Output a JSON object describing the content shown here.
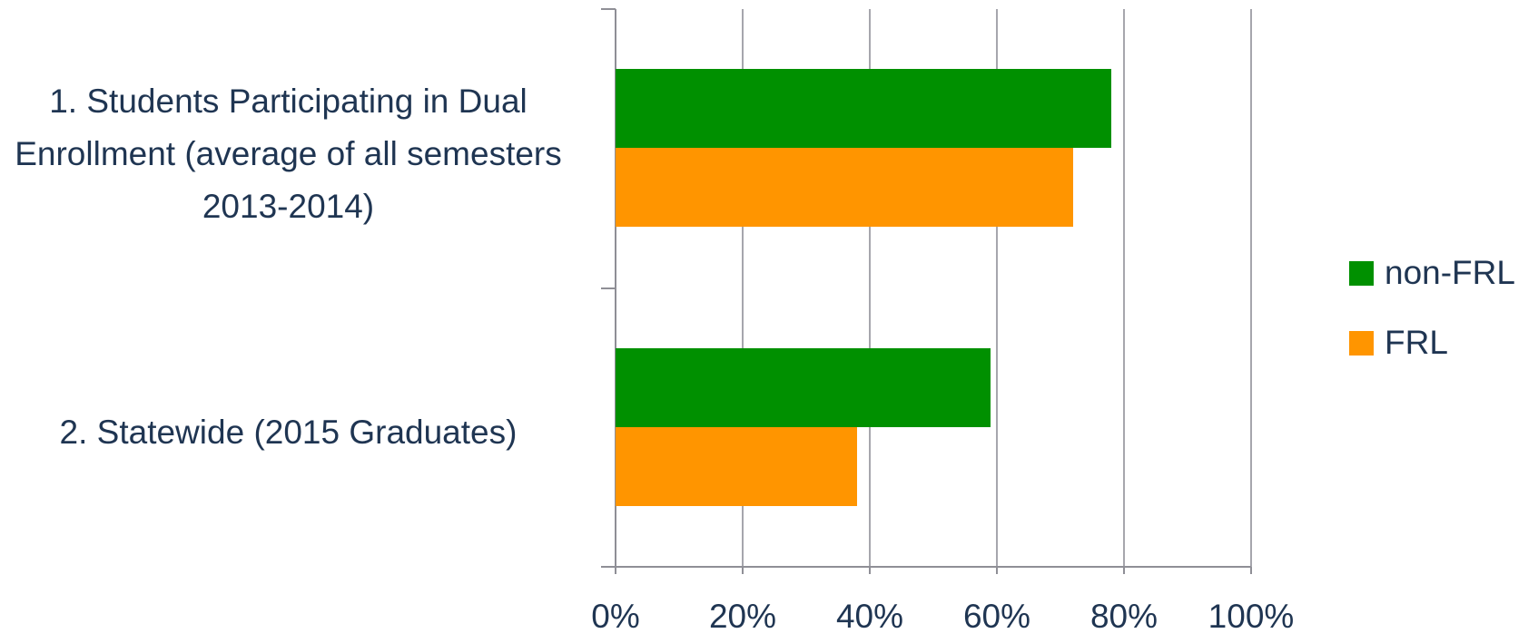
{
  "chart_data": {
    "type": "bar",
    "orientation": "horizontal",
    "categories": [
      "1. Students Participating in Dual Enrollment (average of all semesters 2013-2014)",
      "2. Statewide (2015 Graduates)"
    ],
    "series": [
      {
        "name": "non-FRL",
        "color": "#009000",
        "values": [
          0.78,
          0.59
        ]
      },
      {
        "name": "FRL",
        "color": "#ff9500",
        "values": [
          0.72,
          0.38
        ]
      }
    ],
    "x_ticks": [
      "0%",
      "20%",
      "40%",
      "60%",
      "80%",
      "100%"
    ],
    "xlim": [
      0,
      1
    ],
    "grid": true,
    "legend_position": "right",
    "title": "",
    "xlabel": "",
    "ylabel": ""
  }
}
